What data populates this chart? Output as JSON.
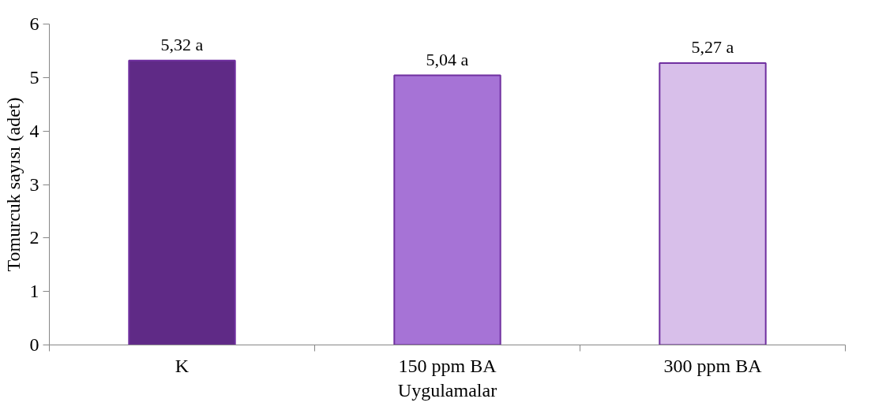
{
  "chart_data": {
    "type": "bar",
    "xlabel": "Uygulamalar",
    "ylabel": "Tomurcuk sayısı (adet)",
    "categories": [
      "K",
      "150 ppm BA",
      "300 ppm BA"
    ],
    "values": [
      5.32,
      5.04,
      5.27
    ],
    "colors": [
      "#5f2a86",
      "#a673d6",
      "#d8bfea"
    ],
    "value_labels": [
      "5,32 a",
      "5,04 a",
      "5,27 a"
    ],
    "ylim": [
      0,
      6
    ],
    "yticks": [
      0,
      1,
      2,
      3,
      4,
      5,
      6
    ],
    "grid": false
  }
}
